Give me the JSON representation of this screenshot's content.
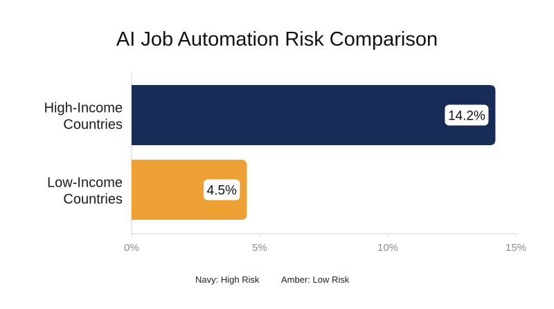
{
  "chart_data": {
    "type": "bar",
    "orientation": "horizontal",
    "title": "AI Job Automation Risk Comparison",
    "categories": [
      "High-Income Countries",
      "Low-Income Countries"
    ],
    "category_label_lines": [
      [
        "High-Income",
        "Countries"
      ],
      [
        "Low-Income",
        "Countries"
      ]
    ],
    "values": [
      14.2,
      4.5
    ],
    "data_labels": [
      "14.2%",
      "4.5%"
    ],
    "bar_colors": [
      "#172b57",
      "#eda135"
    ],
    "xlim": [
      0,
      15
    ],
    "xticks": [
      0,
      5,
      10,
      15
    ],
    "xtick_labels": [
      "0%",
      "5%",
      "10%",
      "15%"
    ],
    "xlabel": "",
    "ylabel": "",
    "grid": false,
    "legend_text": [
      {
        "text": "Navy: High Risk"
      },
      {
        "text": "Amber: Low Risk"
      }
    ]
  }
}
